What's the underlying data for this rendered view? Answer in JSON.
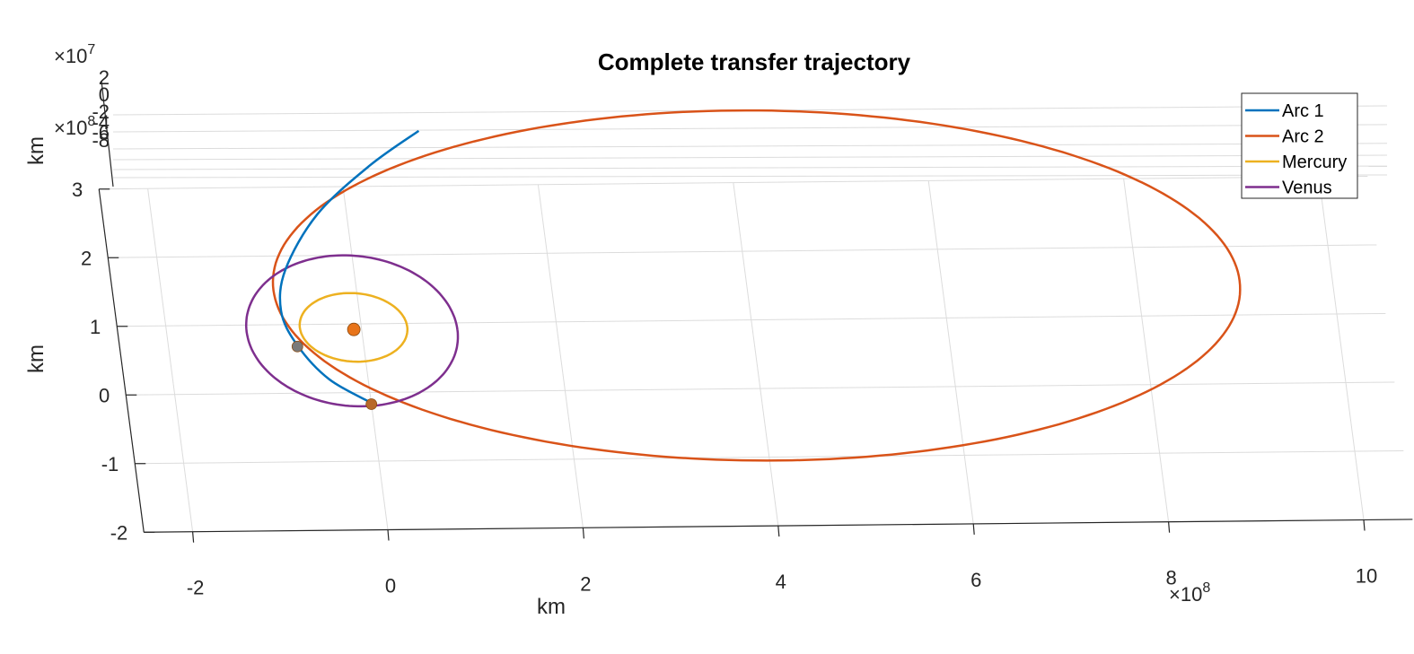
{
  "chart_data": {
    "type": "line",
    "title": "Complete transfer trajectory",
    "xlabel": "km",
    "ylabel": "km",
    "zlabel": "km",
    "x_exponent": "×10^8",
    "y_exponent": "×10^8",
    "z_exponent": "×10^7",
    "xlim": [
      -2.5,
      10.5
    ],
    "ylim": [
      -2,
      3
    ],
    "x_ticks": [
      "-2",
      "0",
      "2",
      "4",
      "6",
      "8",
      "10"
    ],
    "y_ticks": [
      "-2",
      "-1",
      "0",
      "1",
      "2",
      "3"
    ],
    "z_ticks": [
      "2",
      "0",
      "-2",
      "-4",
      "-6",
      "-8"
    ],
    "grid": true,
    "legend_position": "top-right",
    "series": [
      {
        "name": "Arc 1",
        "color": "#0072BD"
      },
      {
        "name": "Arc 2",
        "color": "#D95319"
      },
      {
        "name": "Mercury",
        "color": "#EDB120"
      },
      {
        "name": "Venus",
        "color": "#7E2F8E"
      }
    ],
    "orbits": {
      "mercury": {
        "cx": -0.08,
        "cy": 0.95,
        "rx": 0.55,
        "ry": 0.5
      },
      "venus": {
        "cx": -0.1,
        "cy": 0.9,
        "rx": 1.08,
        "ry": 1.1
      },
      "arc2": {
        "cx": 4.1,
        "cy": 1.5,
        "rx": 4.95,
        "ry": 2.55
      }
    },
    "arc1_points": [
      [
        0.0,
        -0.15
      ],
      [
        -0.4,
        0.2
      ],
      [
        -0.68,
        0.7
      ],
      [
        -0.8,
        1.2
      ],
      [
        -0.7,
        1.8
      ],
      [
        -0.3,
        2.6
      ],
      [
        0.3,
        3.3
      ],
      [
        0.85,
        3.8
      ]
    ],
    "bodies": [
      {
        "name": "sun",
        "x": -0.08,
        "y": 0.92,
        "color": "#E8741A"
      },
      {
        "name": "venus-marker",
        "x": 0.0,
        "y": -0.17,
        "color": "#B8692A"
      },
      {
        "name": "mercury-marker",
        "x": -0.68,
        "y": 0.68,
        "color": "#7A7A7A"
      }
    ]
  }
}
